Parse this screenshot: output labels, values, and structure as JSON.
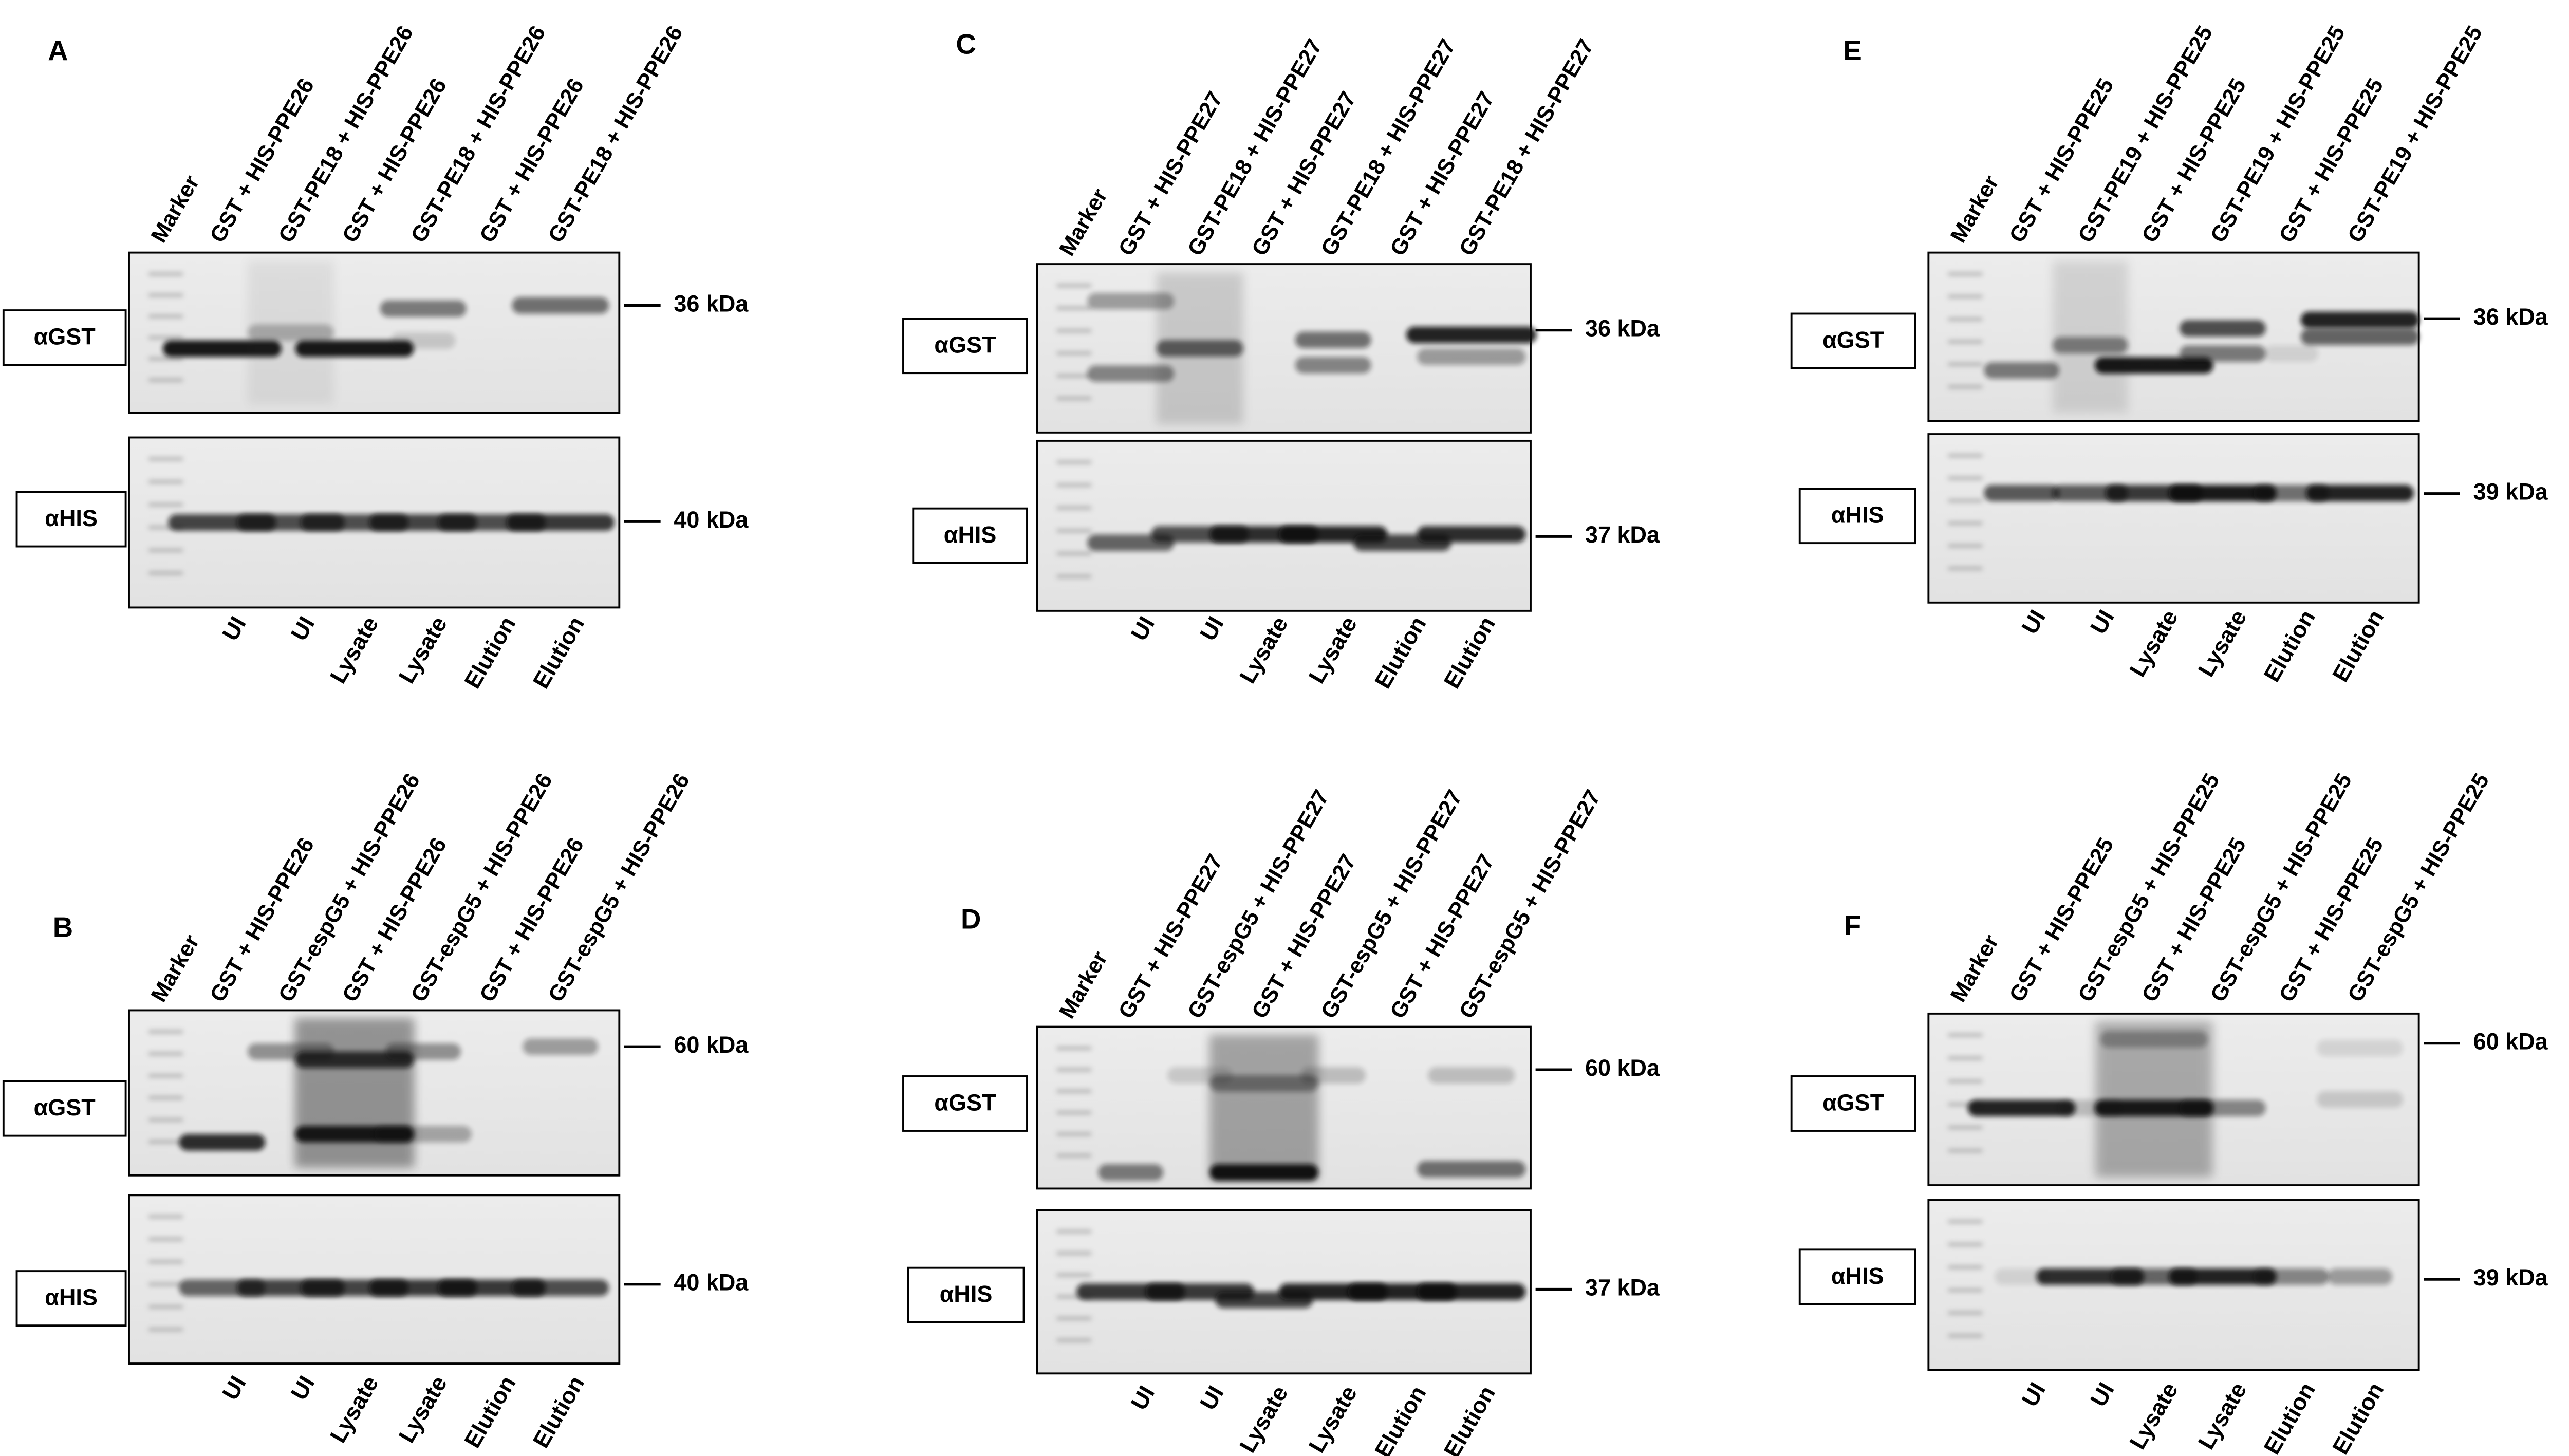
{
  "panels": [
    {
      "label": "A",
      "lanes": [
        "Marker",
        "GST + HIS-PPE26",
        "GST-PE18 + HIS-PPE26",
        "GST + HIS-PPE26",
        "GST-PE18 + HIS-PPE26",
        "GST + HIS-PPE26",
        "GST-PE18 + HIS-PPE26"
      ],
      "blots": [
        {
          "antibody": "αGST",
          "marker": "36 kDa"
        },
        {
          "antibody": "αHIS",
          "marker": "40 kDa"
        }
      ],
      "fractions": [
        "UI",
        "UI",
        "Lysate",
        "Lysate",
        "Elution",
        "Elution"
      ]
    },
    {
      "label": "B",
      "lanes": [
        "Marker",
        "GST + HIS-PPE26",
        "GST-espG5 + HIS-PPE26",
        "GST + HIS-PPE26",
        "GST-espG5 + HIS-PPE26",
        "GST + HIS-PPE26",
        "GST-espG5 + HIS-PPE26"
      ],
      "blots": [
        {
          "antibody": "αGST",
          "marker": "60 kDa"
        },
        {
          "antibody": "αHIS",
          "marker": "40 kDa"
        }
      ],
      "fractions": [
        "UI",
        "UI",
        "Lysate",
        "Lysate",
        "Elution",
        "Elution"
      ]
    },
    {
      "label": "C",
      "lanes": [
        "Marker",
        "GST + HIS-PPE27",
        "GST-PE18 + HIS-PPE27",
        "GST + HIS-PPE27",
        "GST-PE18 + HIS-PPE27",
        "GST + HIS-PPE27",
        "GST-PE18 + HIS-PPE27"
      ],
      "blots": [
        {
          "antibody": "αGST",
          "marker": "36 kDa"
        },
        {
          "antibody": "αHIS",
          "marker": "37 kDa"
        }
      ],
      "fractions": [
        "UI",
        "UI",
        "Lysate",
        "Lysate",
        "Elution",
        "Elution"
      ]
    },
    {
      "label": "D",
      "lanes": [
        "Marker",
        "GST + HIS-PPE27",
        "GST-espG5 + HIS-PPE27",
        "GST + HIS-PPE27",
        "GST-espG5 + HIS-PPE27",
        "GST + HIS-PPE27",
        "GST-espG5 + HIS-PPE27"
      ],
      "blots": [
        {
          "antibody": "αGST",
          "marker": "60 kDa"
        },
        {
          "antibody": "αHIS",
          "marker": "37 kDa"
        }
      ],
      "fractions": [
        "UI",
        "UI",
        "Lysate",
        "Lysate",
        "Elution",
        "Elution"
      ]
    },
    {
      "label": "E",
      "lanes": [
        "Marker",
        "GST + HIS-PPE25",
        "GST-PE19 + HIS-PPE25",
        "GST + HIS-PPE25",
        "GST-PE19 + HIS-PPE25",
        "GST + HIS-PPE25",
        "GST-PE19 + HIS-PPE25"
      ],
      "blots": [
        {
          "antibody": "αGST",
          "marker": "36 kDa"
        },
        {
          "antibody": "αHIS",
          "marker": "39 kDa"
        }
      ],
      "fractions": [
        "UI",
        "UI",
        "Lysate",
        "Lysate",
        "Elution",
        "Elution"
      ]
    },
    {
      "label": "F",
      "lanes": [
        "Marker",
        "GST + HIS-PPE25",
        "GST-espG5 + HIS-PPE25",
        "GST + HIS-PPE25",
        "GST-espG5 + HIS-PPE25",
        "GST + HIS-PPE25",
        "GST-espG5 + HIS-PPE25"
      ],
      "blots": [
        {
          "antibody": "αGST",
          "marker": "60 kDa"
        },
        {
          "antibody": "αHIS",
          "marker": "39 kDa"
        }
      ],
      "fractions": [
        "UI",
        "UI",
        "Lysate",
        "Lysate",
        "Elution",
        "Elution"
      ]
    }
  ]
}
